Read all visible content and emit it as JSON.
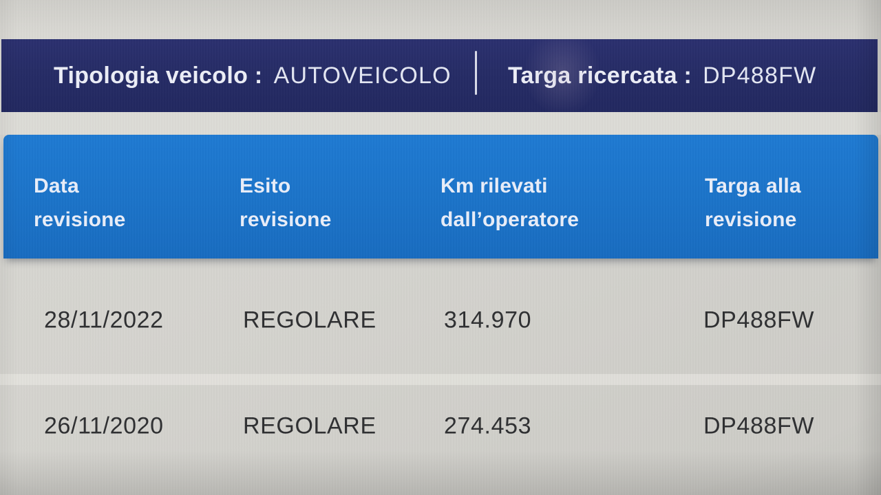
{
  "topbar": {
    "fields": [
      {
        "label": "Tipologia veicolo :",
        "value": "AUTOVEICOLO"
      },
      {
        "label": "Targa ricercata :",
        "value": "DP488FW"
      }
    ]
  },
  "table": {
    "columns": [
      {
        "line1": "Data",
        "line2": "revisione"
      },
      {
        "line1": "Esito",
        "line2": "revisione"
      },
      {
        "line1": "Km rilevati",
        "line2": "dall’operatore"
      },
      {
        "line1": "Targa alla",
        "line2": "revisione"
      }
    ],
    "rows": [
      {
        "data_revisione": "28/11/2022",
        "esito": "REGOLARE",
        "km": "314.970",
        "targa": "DP488FW"
      },
      {
        "data_revisione": "26/11/2020",
        "esito": "REGOLARE",
        "km": "274.453",
        "targa": "DP488FW"
      }
    ]
  },
  "colors": {
    "navy_bar": "#262c66",
    "table_header_blue": "#1b73c8",
    "page_background": "#d3d2cd",
    "header_text": "#e9eef9",
    "row_text": "#2f3032"
  }
}
